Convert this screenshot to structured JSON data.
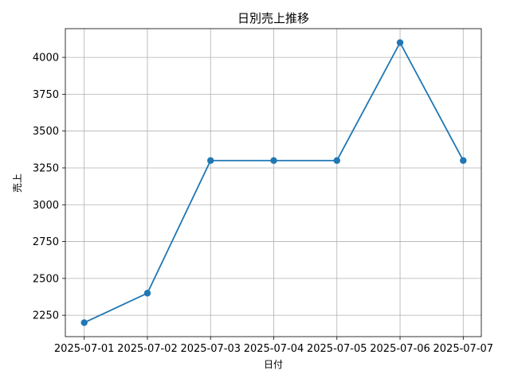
{
  "chart_data": {
    "type": "line",
    "title": "日別売上推移",
    "xlabel": "日付",
    "ylabel": "売上",
    "x": [
      "2025-07-01",
      "2025-07-02",
      "2025-07-03",
      "2025-07-04",
      "2025-07-05",
      "2025-07-06",
      "2025-07-07"
    ],
    "series": [
      {
        "values": [
          2200,
          2400,
          3300,
          3300,
          3300,
          4100,
          3300
        ],
        "color": "#1f77b4"
      }
    ],
    "yticks": [
      2250,
      2500,
      2750,
      3000,
      3250,
      3500,
      3750,
      4000
    ],
    "ylim": [
      2105,
      4195
    ],
    "grid": true,
    "marker": "circle"
  }
}
